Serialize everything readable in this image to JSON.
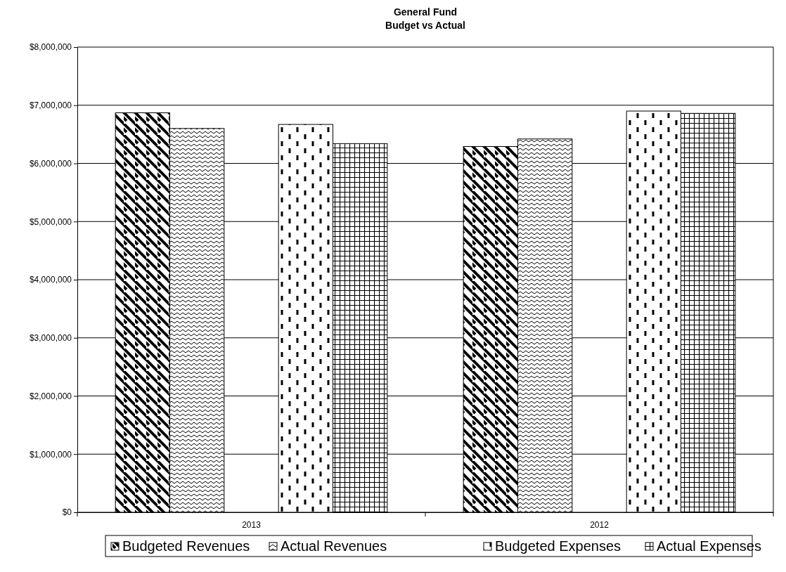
{
  "chart_data": {
    "type": "bar",
    "title": "General Fund",
    "subtitle": "Budget vs Actual",
    "categories": [
      "2013",
      "2012"
    ],
    "series": [
      {
        "name": "Budgeted Revenues",
        "color": "#000000",
        "values": [
          6870000,
          6290000
        ]
      },
      {
        "name": "Actual Revenues",
        "color": "#000000",
        "values": [
          6600000,
          6420000
        ]
      },
      {
        "values": [
          null,
          null
        ]
      },
      {
        "name": "Budgeted Expenses",
        "color": "#000000",
        "values": [
          6670000,
          6900000
        ]
      },
      {
        "name": "Actual Expenses",
        "color": "#000000",
        "values": [
          6340000,
          6860000
        ]
      }
    ],
    "ylim": [
      0,
      8000000
    ],
    "yticks": [
      {
        "value": 0,
        "label": "$0"
      },
      {
        "value": 1000000,
        "label": "$1,000,000"
      },
      {
        "value": 2000000,
        "label": "$2,000,000"
      },
      {
        "value": 3000000,
        "label": "$3,000,000"
      },
      {
        "value": 4000000,
        "label": "$4,000,000"
      },
      {
        "value": 5000000,
        "label": "$5,000,000"
      },
      {
        "value": 6000000,
        "label": "$6,000,000"
      },
      {
        "value": 7000000,
        "label": "$7,000,000"
      },
      {
        "value": 8000000,
        "label": "$8,000,000"
      }
    ],
    "grid": "y",
    "legend": "bottom"
  }
}
